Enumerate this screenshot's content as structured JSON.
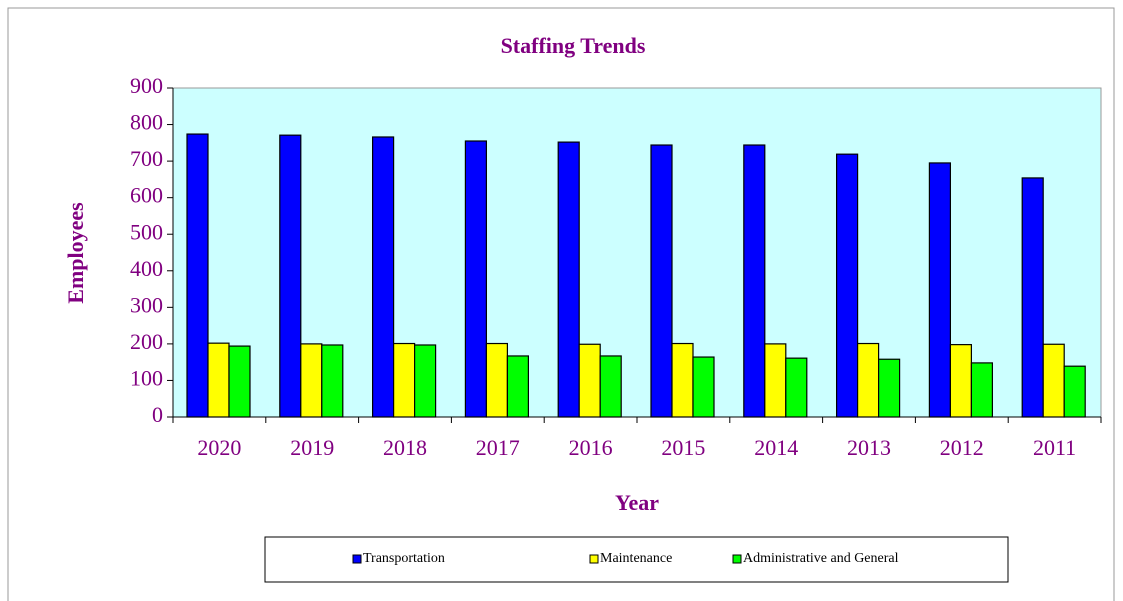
{
  "chart_data": {
    "type": "bar",
    "title": "Staffing Trends",
    "x_label": "Year",
    "y_label": "Employees",
    "categories": [
      "2020",
      "2019",
      "2018",
      "2017",
      "2016",
      "2015",
      "2014",
      "2013",
      "2012",
      "2011"
    ],
    "series": [
      {
        "name": "Transportation",
        "color": "#0000ff",
        "values": [
          774,
          771,
          766,
          755,
          752,
          744,
          744,
          719,
          695,
          654
        ]
      },
      {
        "name": "Maintenance",
        "color": "#ffff00",
        "values": [
          202,
          200,
          201,
          201,
          199,
          201,
          200,
          201,
          198,
          199
        ]
      },
      {
        "name": "Administrative and General",
        "color": "#00ff00",
        "values": [
          194,
          197,
          197,
          167,
          167,
          164,
          161,
          158,
          148,
          139
        ]
      }
    ],
    "ylim": [
      0,
      900
    ],
    "yticks": [
      0,
      100,
      200,
      300,
      400,
      500,
      600,
      700,
      800,
      900
    ],
    "grid": false,
    "legend": "bottom"
  }
}
